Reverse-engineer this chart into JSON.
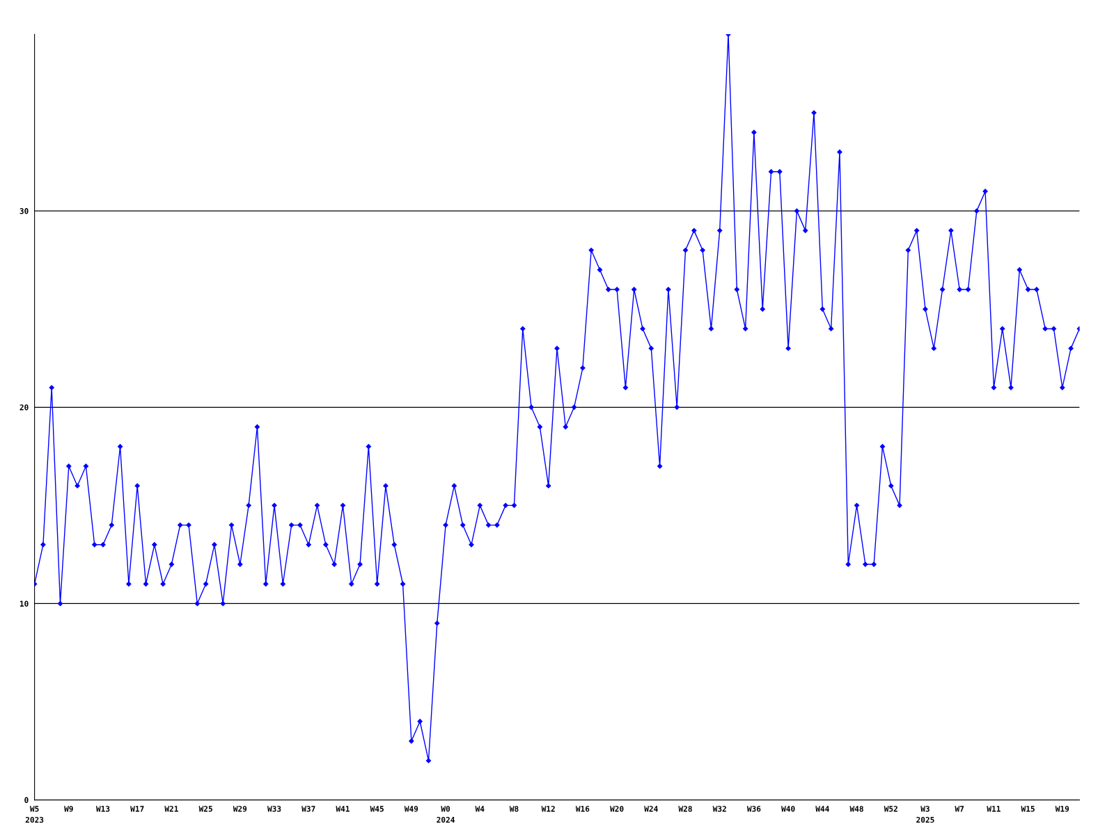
{
  "chart_data": {
    "type": "line",
    "categories": [
      "W5\n2023",
      null,
      null,
      null,
      "W9",
      null,
      null,
      null,
      "W13",
      null,
      null,
      null,
      "W17",
      null,
      null,
      null,
      "W21",
      null,
      null,
      null,
      "W25",
      null,
      null,
      null,
      "W29",
      null,
      null,
      null,
      "W33",
      null,
      null,
      null,
      "W37",
      null,
      null,
      null,
      "W41",
      null,
      null,
      null,
      "W45",
      null,
      null,
      null,
      "W49",
      null,
      null,
      null,
      "W0\n2024",
      null,
      null,
      null,
      "W4",
      null,
      null,
      null,
      "W8",
      null,
      null,
      null,
      "W12",
      null,
      null,
      null,
      "W16",
      null,
      null,
      null,
      "W20",
      null,
      null,
      null,
      "W24",
      null,
      null,
      null,
      "W28",
      null,
      null,
      null,
      "W32",
      null,
      null,
      null,
      "W36",
      null,
      null,
      null,
      "W40",
      null,
      null,
      null,
      "W44",
      null,
      null,
      null,
      "W48",
      null,
      null,
      null,
      "W52",
      null,
      null,
      null,
      "W3\n2025",
      null,
      null,
      null,
      "W7",
      null,
      null,
      null,
      "W11",
      null,
      null,
      null,
      "W15",
      null,
      null,
      null,
      "W19",
      null,
      null
    ],
    "series": [
      {
        "color": "#0000ff",
        "values": [
          11,
          13,
          21,
          10,
          17,
          16,
          17,
          13,
          13,
          14,
          18,
          11,
          16,
          11,
          13,
          11,
          12,
          14,
          14,
          10,
          11,
          13,
          10,
          14,
          12,
          15,
          19,
          11,
          15,
          11,
          14,
          14,
          13,
          15,
          13,
          12,
          15,
          11,
          12,
          18,
          11,
          16,
          13,
          11,
          3,
          4,
          2,
          9,
          14,
          16,
          14,
          13,
          15,
          14,
          14,
          15,
          15,
          24,
          20,
          19,
          16,
          23,
          19,
          20,
          22,
          28,
          27,
          26,
          26,
          21,
          26,
          24,
          23,
          17,
          26,
          20,
          28,
          29,
          28,
          24,
          29,
          39,
          26,
          24,
          34,
          25,
          32,
          32,
          23,
          30,
          29,
          35,
          25,
          24,
          33,
          12,
          15,
          12,
          12,
          18,
          16,
          15,
          28,
          29,
          25,
          23,
          26,
          29,
          26,
          26,
          30,
          31,
          21,
          24,
          21,
          27,
          26,
          26,
          24,
          24,
          21,
          23,
          24
        ]
      }
    ],
    "ylim": [
      0,
      39
    ],
    "yticks": [
      0,
      10,
      20,
      30
    ],
    "grid": "y",
    "marker": "diamond",
    "line_style": "solid"
  }
}
